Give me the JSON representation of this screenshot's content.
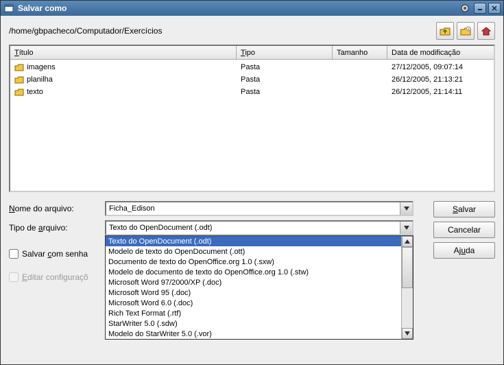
{
  "window": {
    "title": "Salvar como"
  },
  "path": "/home/gbpacheco/Computador/Exercícios",
  "columns": {
    "titulo": "Título",
    "tipo": "Tipo",
    "tamanho": "Tamanho",
    "data": "Data de modificação"
  },
  "files": [
    {
      "name": "imagens",
      "tipo": "Pasta",
      "tamanho": "",
      "data": "27/12/2005, 09:07:14"
    },
    {
      "name": "planilha",
      "tipo": "Pasta",
      "tamanho": "",
      "data": "26/12/2005, 21:13:21"
    },
    {
      "name": "texto",
      "tipo": "Pasta",
      "tamanho": "",
      "data": "26/12/2005, 21:14:11"
    }
  ],
  "labels": {
    "nome": "Nome do arquivo:",
    "tipo": "Tipo de arquivo:"
  },
  "filename": "Ficha_Edison",
  "filetype_selected": "Texto do OpenDocument (.odt)",
  "filetype_options": [
    "Texto do OpenDocument (.odt)",
    "Modelo de texto do OpenDocument (.ott)",
    "Documento de texto do OpenOffice.org 1.0 (.sxw)",
    "Modelo de documento de texto do OpenOffice.org 1.0 (.stw)",
    "Microsoft Word 97/2000/XP (.doc)",
    "Microsoft Word 95 (.doc)",
    "Microsoft Word 6.0 (.doc)",
    "Rich Text Format (.rtf)",
    "StarWriter 5.0 (.sdw)",
    "Modelo do StarWriter 5.0 (.vor)"
  ],
  "buttons": {
    "salvar": "Salvar",
    "cancelar": "Cancelar",
    "ajuda": "Ajuda"
  },
  "checkboxes": {
    "senha": "Salvar com senha",
    "editar": "Editar configuraçõ"
  },
  "colors": {
    "titlebar_bg": "#4a7aa8",
    "highlight": "#3b6bbf",
    "folder": "#f4c842"
  }
}
